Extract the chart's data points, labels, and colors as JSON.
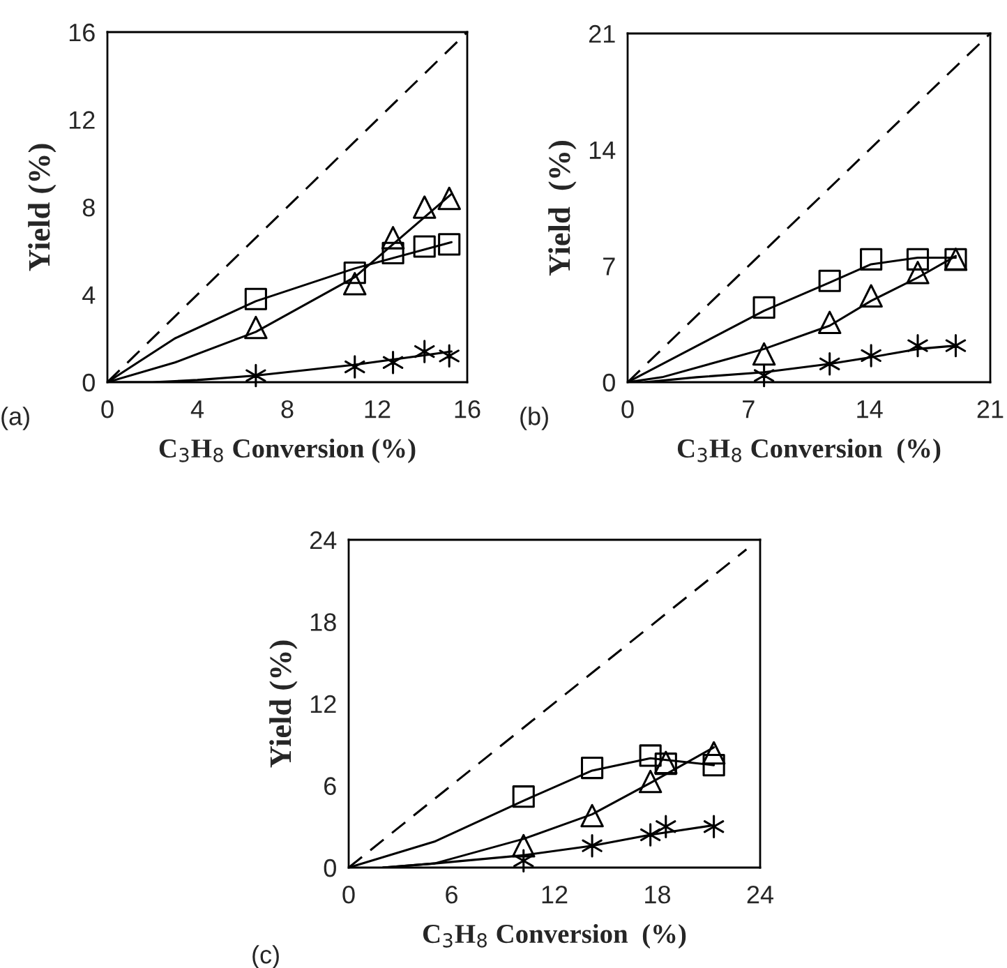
{
  "chart_data": [
    {
      "type": "scatter",
      "xlabel": "C$_{3}$H$_{8}$ Conversion (%)",
      "ylabel": "Yield (%)",
      "annotations": [
        "(a)"
      ],
      "xlim": [
        0,
        16
      ],
      "ylim": [
        0,
        16
      ],
      "xticks": [
        0,
        4,
        8,
        12,
        16
      ],
      "yticks": [
        0,
        4,
        8,
        12,
        16
      ],
      "grid": false,
      "legend": false,
      "series": [
        {
          "type": "line",
          "color": "#000000",
          "line_style": "dashed",
          "marker": "none",
          "x": [
            0,
            16
          ],
          "values": [
            0,
            16
          ]
        },
        {
          "type": "line",
          "color": "#000000",
          "line_style": "solid",
          "marker": "none",
          "x": [
            0,
            3,
            6.6,
            11,
            15.3
          ],
          "values": [
            0,
            2.0,
            3.7,
            5.2,
            6.4
          ]
        },
        {
          "type": "line",
          "color": "#000000",
          "line_style": "solid",
          "marker": "none",
          "x": [
            0,
            3,
            6.6,
            11,
            15.3
          ],
          "values": [
            0,
            0.9,
            2.3,
            4.8,
            8.6
          ]
        },
        {
          "type": "line",
          "color": "#000000",
          "line_style": "solid",
          "marker": "none",
          "x": [
            0,
            2,
            4,
            6.6,
            11,
            15.3
          ],
          "values": [
            0,
            0,
            0.1,
            0.3,
            0.8,
            1.4
          ]
        },
        {
          "color": "#000000",
          "marker": "square",
          "x": [
            6.6,
            11.0,
            12.7,
            14.1,
            15.2
          ],
          "values": [
            3.8,
            5.0,
            5.9,
            6.2,
            6.3
          ]
        },
        {
          "color": "#000000",
          "marker": "triangle",
          "x": [
            6.6,
            11.0,
            12.7,
            14.1,
            15.2
          ],
          "values": [
            2.5,
            4.5,
            6.6,
            8.0,
            8.4
          ]
        },
        {
          "color": "#000000",
          "marker": "cross",
          "x": [
            6.6,
            11.0,
            12.7,
            14.1,
            15.2
          ],
          "values": [
            0.3,
            0.7,
            0.9,
            1.4,
            1.2
          ]
        }
      ]
    },
    {
      "type": "scatter",
      "xlabel": "C$_{3}$H$_{8}$ Conversion  (%)",
      "ylabel": "Yield  (%)",
      "annotations": [
        "(b)"
      ],
      "xlim": [
        0,
        21
      ],
      "ylim": [
        0,
        21
      ],
      "xticks": [
        0,
        7,
        14,
        21
      ],
      "yticks": [
        0,
        7,
        14,
        21
      ],
      "grid": false,
      "legend": false,
      "series": [
        {
          "type": "line",
          "color": "#000000",
          "line_style": "dashed",
          "marker": "none",
          "x": [
            0,
            21
          ],
          "values": [
            0,
            21
          ]
        },
        {
          "type": "line",
          "color": "#000000",
          "line_style": "solid",
          "marker": "none",
          "x": [
            0,
            7.9,
            11.7,
            14.1,
            16.8,
            19
          ],
          "values": [
            0,
            4.3,
            6.0,
            7.1,
            7.5,
            7.5
          ]
        },
        {
          "type": "line",
          "color": "#000000",
          "line_style": "solid",
          "marker": "none",
          "x": [
            0,
            2,
            7.9,
            11.7,
            14.1,
            16.8,
            19
          ],
          "values": [
            0,
            0.3,
            2.0,
            3.4,
            4.9,
            6.3,
            7.6
          ]
        },
        {
          "type": "line",
          "color": "#000000",
          "line_style": "solid",
          "marker": "none",
          "x": [
            1,
            4,
            7.9,
            11.7,
            14.1,
            16.8,
            19
          ],
          "values": [
            0,
            0.3,
            0.6,
            1.1,
            1.5,
            2.0,
            2.2
          ]
        },
        {
          "color": "#000000",
          "marker": "square",
          "x": [
            7.9,
            11.7,
            14.1,
            16.8,
            19.0
          ],
          "values": [
            4.5,
            6.1,
            7.4,
            7.4,
            7.4
          ]
        },
        {
          "color": "#000000",
          "marker": "triangle",
          "x": [
            7.9,
            11.7,
            14.1,
            16.8,
            19.0
          ],
          "values": [
            1.7,
            3.6,
            5.2,
            6.6,
            7.4
          ]
        },
        {
          "color": "#000000",
          "marker": "cross",
          "x": [
            7.9,
            11.7,
            14.1,
            16.8,
            19.0
          ],
          "values": [
            0.4,
            1.1,
            1.6,
            2.2,
            2.2
          ]
        }
      ]
    },
    {
      "type": "scatter",
      "xlabel": "C$_{3}$H$_{8}$ Conversion  (%)",
      "ylabel": "Yield (%)",
      "annotations": [
        "(c)"
      ],
      "xlim": [
        0,
        24
      ],
      "ylim": [
        0,
        24
      ],
      "xticks": [
        0,
        6,
        12,
        18,
        24
      ],
      "yticks": [
        0,
        6,
        12,
        18,
        24
      ],
      "grid": false,
      "legend": false,
      "series": [
        {
          "type": "line",
          "color": "#000000",
          "line_style": "dashed",
          "marker": "none",
          "x": [
            0,
            23.2
          ],
          "values": [
            0,
            23.3
          ]
        },
        {
          "type": "line",
          "color": "#000000",
          "line_style": "solid",
          "marker": "none",
          "x": [
            0,
            5,
            10.2,
            14.2,
            17.6,
            21.3
          ],
          "values": [
            0,
            1.9,
            4.9,
            7.1,
            8.0,
            7.5
          ]
        },
        {
          "type": "line",
          "color": "#000000",
          "line_style": "solid",
          "marker": "none",
          "x": [
            2,
            5,
            10.2,
            14.2,
            17.6,
            21.3
          ],
          "values": [
            0,
            0.3,
            2.1,
            3.9,
            6.2,
            8.8
          ]
        },
        {
          "type": "line",
          "color": "#000000",
          "line_style": "solid",
          "marker": "none",
          "x": [
            2,
            5,
            10.2,
            14.2,
            17.6,
            21.3
          ],
          "values": [
            0,
            0.3,
            0.9,
            1.6,
            2.4,
            3.1
          ]
        },
        {
          "color": "#000000",
          "marker": "square",
          "x": [
            10.2,
            14.2,
            17.6,
            18.5,
            21.3
          ],
          "values": [
            5.2,
            7.3,
            8.2,
            7.6,
            7.5
          ]
        },
        {
          "color": "#000000",
          "marker": "triangle",
          "x": [
            10.2,
            14.2,
            17.6,
            18.5,
            21.3
          ],
          "values": [
            1.6,
            3.8,
            6.3,
            7.7,
            8.4
          ]
        },
        {
          "color": "#000000",
          "marker": "cross",
          "x": [
            10.2,
            14.2,
            17.6,
            18.5,
            21.3
          ],
          "values": [
            0.5,
            1.6,
            2.4,
            3.0,
            3.0
          ]
        }
      ]
    }
  ]
}
